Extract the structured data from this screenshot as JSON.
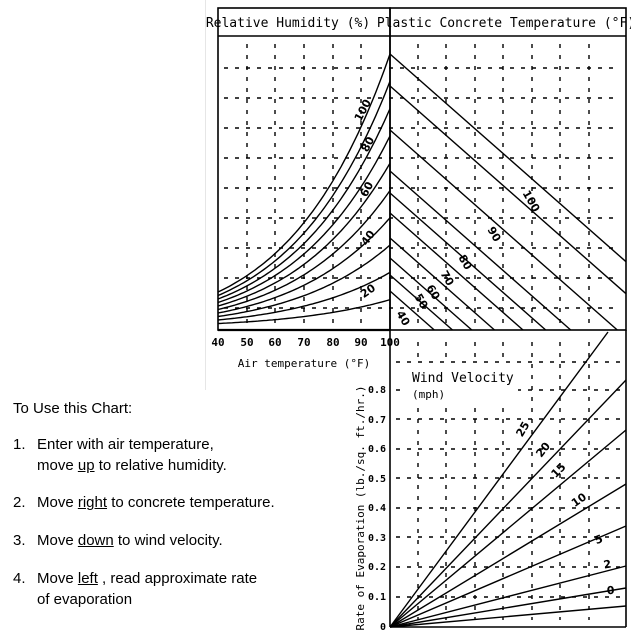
{
  "upper": {
    "left_title": "Relative Humidity (%)",
    "right_title": "Plastic Concrete Temperature (°F)",
    "x_ticks": [
      "40",
      "50",
      "60",
      "70",
      "80",
      "90",
      "100"
    ],
    "x_label": "Air temperature (°F)",
    "humidity_labels": [
      "100",
      "80",
      "60",
      "40",
      "20"
    ],
    "concrete_labels": [
      "100",
      "90",
      "80",
      "70",
      "60",
      "50",
      "40"
    ]
  },
  "lower": {
    "title_line1": "Wind Velocity",
    "title_line2": "(mph)",
    "y_ticks": [
      "0.8",
      "0.7",
      "0.6",
      "0.5",
      "0.4",
      "0.3",
      "0.2",
      "0.1",
      "0"
    ],
    "y_label": "Rate of Evaporation (lb./sq. ft./hr.)",
    "wind_labels": [
      "25",
      "20",
      "15",
      "10",
      "5",
      "2",
      "0"
    ]
  },
  "instructions": {
    "heading": "To Use this Chart:",
    "step1_num": "1.",
    "step1_a": "Enter with air temperature,",
    "step1_b_pre": "move ",
    "step1_b_key": "up",
    "step1_b_post": " to relative humidity.",
    "step2_num": "2.",
    "step2_pre": "Move ",
    "step2_key": "right",
    "step2_post": " to concrete temperature.",
    "step3_num": "3.",
    "step3_pre": "Move ",
    "step3_key": "down",
    "step3_post": " to wind velocity.",
    "step4_num": "4.",
    "step4_pre": "Move ",
    "step4_key": "left",
    "step4_post": " , read approximate rate",
    "step4_b": "of evaporation"
  }
}
